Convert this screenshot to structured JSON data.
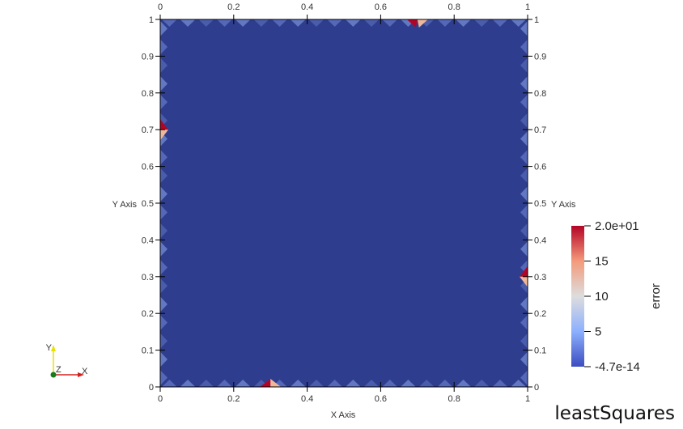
{
  "view": {
    "case_name": "leastSquares",
    "background": "#ffffff",
    "field_color": "#2f3d8e"
  },
  "axes": {
    "x_title": "X Axis",
    "y_title": "Y Axis",
    "x_ticks": [
      "0",
      "0.2",
      "0.4",
      "0.6",
      "0.8",
      "1"
    ],
    "y_ticks": [
      "0",
      "0.1",
      "0.2",
      "0.3",
      "0.4",
      "0.5",
      "0.6",
      "0.7",
      "0.8",
      "0.9",
      "1"
    ]
  },
  "colorbar": {
    "title": "error",
    "labels": [
      "2.0e+01",
      "15",
      "10",
      "5",
      "-4.7e-14"
    ],
    "range": [
      -4.7e-14,
      20
    ],
    "colors": [
      "#b40426",
      "#f49a7b",
      "#dddddd",
      "#8db0fe",
      "#3b4cc0"
    ]
  },
  "orientation_axes": {
    "x_label": "X",
    "y_label": "Y",
    "z_label": "Z"
  },
  "chart_data": {
    "type": "heatmap",
    "field": "error",
    "xlabel": "X Axis",
    "ylabel": "Y Axis",
    "xlim": [
      0,
      1
    ],
    "ylim": [
      0,
      1
    ],
    "hotspots": [
      {
        "x": 0.7,
        "y": 1.0,
        "value": 20
      },
      {
        "x": 0.0,
        "y": 0.7,
        "value": 20
      },
      {
        "x": 0.3,
        "y": 0.0,
        "value": 20
      },
      {
        "x": 1.0,
        "y": 0.3,
        "value": 20
      }
    ]
  }
}
